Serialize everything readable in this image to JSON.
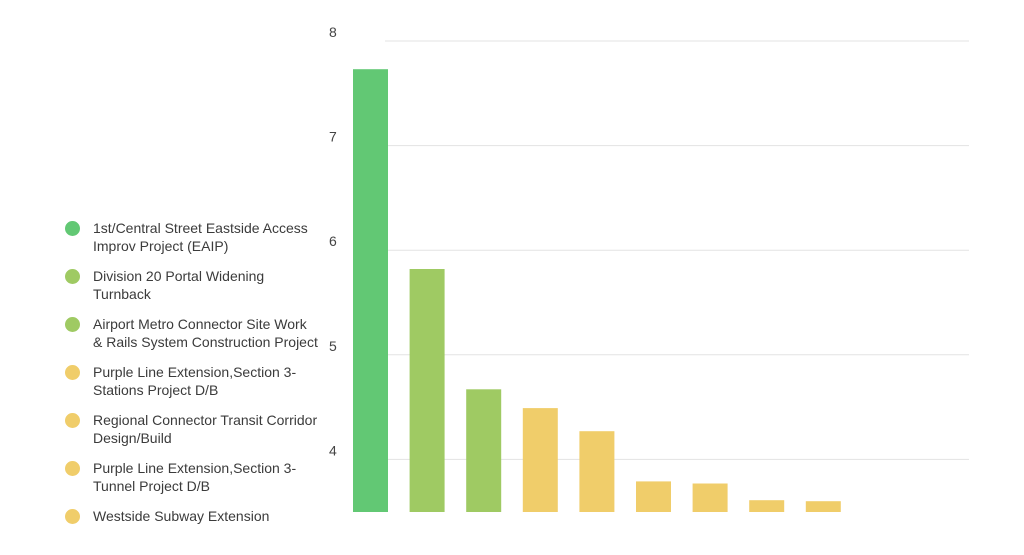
{
  "chart_data": {
    "type": "bar",
    "categories": [
      "1st/Central Street Eastside Access Improv Project (EAIP)",
      "Division 20 Portal Widening Turnback",
      "Airport Metro Connector Site Work & Rails System Construction Project",
      "Purple Line Extension,Section 3-Stations Project D/B",
      "Regional Connector Transit Corridor Design/Build",
      "Purple Line Extension,Section 3-Tunnel Project D/B",
      "",
      "",
      ""
    ],
    "values": [
      7.73,
      5.82,
      4.67,
      4.49,
      4.27,
      3.79,
      3.77,
      3.61,
      3.6
    ],
    "colors": [
      "#62c874",
      "#9fca63",
      "#9fca63",
      "#f0cd6a",
      "#f0cd6a",
      "#f0cd6a",
      "#f0cd6a",
      "#f0cd6a",
      "#f0cd6a"
    ],
    "yticks": [
      4,
      5,
      6,
      7,
      8
    ],
    "ylim": [
      3.5,
      8
    ],
    "grid": true,
    "legend_position": "left"
  },
  "legend": [
    {
      "label_line1": "1st/Central Street Eastside Access",
      "label_line2": "Improv Project (EAIP)",
      "color": "#62c874"
    },
    {
      "label_line1": "Division 20 Portal Widening",
      "label_line2": "Turnback",
      "color": "#9fca63"
    },
    {
      "label_line1": "Airport Metro Connector Site Work",
      "label_line2": "& Rails System Construction Project",
      "color": "#9fca63"
    },
    {
      "label_line1": "Purple Line Extension,Section 3-",
      "label_line2": "Stations Project D/B",
      "color": "#f0cd6a"
    },
    {
      "label_line1": "Regional Connector Transit Corridor",
      "label_line2": "Design/Build",
      "color": "#f0cd6a"
    },
    {
      "label_line1": "Purple Line Extension,Section 3-",
      "label_line2": "Tunnel Project D/B",
      "color": "#f0cd6a"
    },
    {
      "label_line1": "Westside Subway Extension",
      "label_line2": "",
      "color": "#f0cd6a"
    }
  ]
}
